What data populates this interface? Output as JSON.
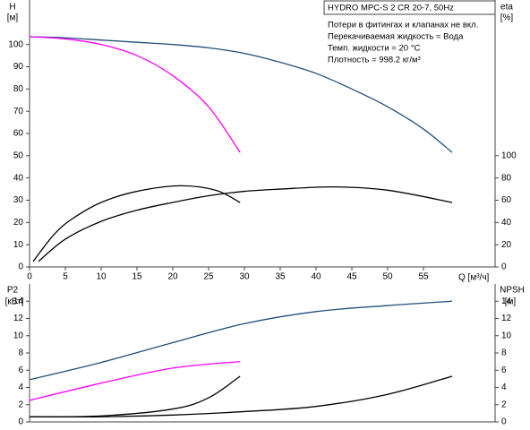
{
  "chart_data": [
    {
      "type": "line",
      "title": "HYDRO MPC-S 2 CR 20-7, 50Hz",
      "annotations": [
        "Потери в фитингах и клапанах не вкл.",
        "Перекачиваемая жидкость = Вода",
        "Темп. жидкости = 20 °C",
        "Плотность = 998.2 кг/м³"
      ],
      "ylabel": "H",
      "yunit": "[м]",
      "y2label": "eta",
      "y2unit": "[%]",
      "xlabel": "Q [м³/ч]",
      "xlim": [
        0,
        65
      ],
      "xticks": [
        0,
        5,
        10,
        15,
        20,
        25,
        30,
        35,
        40,
        45,
        50,
        55
      ],
      "ylim": [
        0,
        120
      ],
      "yticks": [
        0,
        10,
        20,
        30,
        40,
        50,
        60,
        70,
        80,
        90,
        100
      ],
      "y2lim": [
        0,
        240
      ],
      "y2ticks": [
        0,
        20,
        40,
        60,
        80,
        100
      ],
      "series": [
        {
          "color": "#1f4e79",
          "x": [
            0,
            5,
            10,
            15,
            20,
            25,
            30,
            35,
            40,
            45,
            50,
            55,
            59
          ],
          "values": [
            103.5,
            103,
            102,
            101,
            100,
            98.5,
            96,
            92,
            87,
            80,
            72,
            62,
            51.5
          ]
        },
        {
          "color": "#ff00ff",
          "x": [
            0,
            5,
            10,
            15,
            20,
            25,
            29.4
          ],
          "values": [
            103.5,
            102.5,
            100,
            95,
            86,
            72,
            51.5
          ]
        },
        {
          "color": "#000000",
          "axis": "y2",
          "x": [
            0.5,
            3.4,
            5.9,
            10,
            15,
            21,
            26,
            29.4
          ],
          "values": [
            5,
            29,
            43,
            58,
            68,
            73,
            69,
            58
          ]
        },
        {
          "color": "#000000",
          "axis": "y2",
          "x": [
            1.25,
            5,
            10,
            15,
            20,
            25,
            30,
            35,
            42.5,
            50,
            59
          ],
          "values": [
            5,
            25,
            41,
            51,
            58,
            64,
            68,
            70,
            72,
            69,
            58
          ]
        }
      ]
    },
    {
      "type": "line",
      "ylabel": "P2",
      "yunit": "[кВт]",
      "y2label": "NPSH",
      "y2unit": "[м]",
      "xlim": [
        0,
        65
      ],
      "ylim": [
        0,
        16
      ],
      "yticks": [
        0,
        2,
        4,
        6,
        8,
        10,
        12,
        14
      ],
      "y2lim": [
        0,
        16
      ],
      "y2ticks": [
        0,
        2,
        4,
        6,
        8,
        10,
        12,
        14
      ],
      "series": [
        {
          "color": "#1f4e79",
          "x": [
            0,
            10,
            20,
            30,
            40,
            50,
            59
          ],
          "values": [
            4.9,
            6.9,
            9.2,
            11.4,
            12.8,
            13.5,
            14
          ]
        },
        {
          "color": "#ff00ff",
          "x": [
            0,
            10,
            20,
            29.4
          ],
          "values": [
            2.5,
            4.5,
            6.25,
            7
          ]
        },
        {
          "color": "#000000",
          "axis": "y2",
          "x": [
            0,
            10,
            20,
            25,
            29.4
          ],
          "values": [
            0.6,
            0.7,
            1.5,
            2.8,
            5.3
          ]
        },
        {
          "color": "#000000",
          "axis": "y2",
          "x": [
            0,
            10,
            20,
            30,
            40,
            50,
            59
          ],
          "values": [
            0.6,
            0.6,
            0.8,
            1.2,
            1.8,
            3.2,
            5.3
          ]
        }
      ]
    }
  ]
}
